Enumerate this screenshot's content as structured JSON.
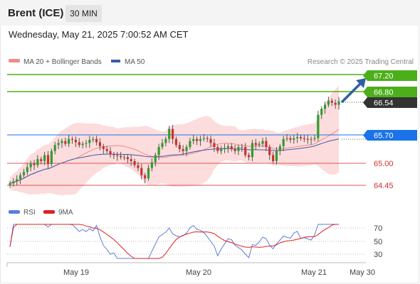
{
  "header": {
    "instrument": "Brent (ICE)",
    "timeframe": "30 MIN",
    "datetime": "Wednesday, May 21, 2025 7:00:52 AM CET"
  },
  "legend": {
    "ma20_label": "MA 20 + Bollinger Bands",
    "ma50_label": "MA 50",
    "credit": "Research © 2025 Trading Central",
    "ma20_color": "#f28a8a",
    "ma50_color": "#3b5ba9"
  },
  "levels": [
    {
      "value": 67.2,
      "label": "67.20",
      "kind": "resistance-target",
      "color": "#4caf1a"
    },
    {
      "value": 66.8,
      "label": "66.80",
      "kind": "resistance",
      "color": "#4caf1a"
    },
    {
      "value": 66.54,
      "label": "66.54",
      "kind": "last-price",
      "color": "#333333"
    },
    {
      "value": 65.7,
      "label": "65.70",
      "kind": "pivot",
      "color": "#1a73e8"
    },
    {
      "value": 65.0,
      "label": "65.00",
      "kind": "support",
      "color": "#e05555"
    },
    {
      "value": 64.45,
      "label": "64.45",
      "kind": "support",
      "color": "#e05555"
    }
  ],
  "rsi_panel": {
    "rsi_label": "RSI",
    "ma_label": "9MA",
    "rsi_color": "#5b7fd6",
    "ma_color": "#e02020",
    "ticks": [
      "70",
      "50",
      "30"
    ]
  },
  "x_axis": {
    "labels": [
      "May 19",
      "May 20",
      "May 21",
      "May 30"
    ]
  },
  "colors": {
    "bull": "#2f9e2f",
    "bear": "#d32f2f",
    "band": "#fbd6d6",
    "arrow": "#2e5fa3"
  },
  "chart_data": {
    "type": "candlestick",
    "x_axis_labels": [
      "May 19",
      "May 20",
      "May 21",
      "May 30"
    ],
    "price_levels": [
      67.2,
      66.8,
      66.54,
      65.7,
      65.0,
      64.45
    ],
    "last_price": 66.54,
    "close_approx": [
      64.5,
      64.55,
      64.6,
      64.7,
      64.78,
      64.9,
      65.0,
      64.95,
      65.1,
      65.05,
      65.2,
      64.98,
      65.3,
      65.45,
      65.5,
      65.55,
      65.48,
      65.6,
      65.58,
      65.52,
      65.45,
      65.48,
      65.5,
      65.58,
      65.6,
      65.52,
      65.42,
      65.35,
      65.3,
      65.22,
      65.2,
      65.18,
      65.15,
      65.15,
      65.1,
      65.05,
      64.95,
      64.88,
      64.7,
      64.62,
      64.88,
      65.02,
      65.2,
      65.4,
      65.5,
      65.6,
      65.85,
      65.6,
      65.45,
      65.35,
      65.3,
      65.4,
      65.55,
      65.6,
      65.55,
      65.6,
      65.62,
      65.6,
      65.5,
      65.4,
      65.3,
      65.35,
      65.38,
      65.42,
      65.35,
      65.3,
      65.4,
      65.4,
      65.2,
      65.15,
      65.5,
      65.45,
      65.48,
      65.55,
      65.4,
      65.2,
      65.05,
      65.3,
      65.42,
      65.6,
      65.62,
      65.58,
      65.62,
      65.65,
      65.62,
      65.6,
      65.58,
      65.6,
      65.62,
      66.2,
      66.35,
      66.45,
      66.55,
      66.5,
      66.45,
      66.54
    ],
    "rsi": {
      "ticks": [
        70,
        50,
        30
      ],
      "last": 70
    }
  }
}
